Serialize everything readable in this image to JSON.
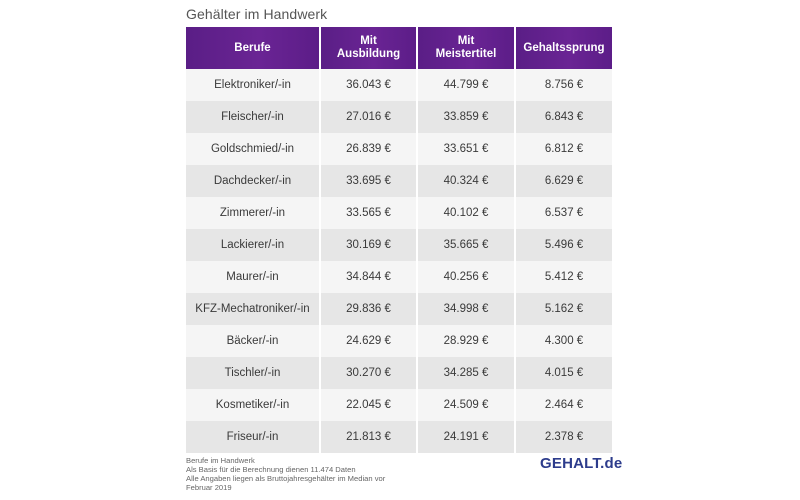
{
  "title": "Gehälter im Handwerk",
  "chart_data": {
    "type": "table",
    "title": "Gehälter im Handwerk",
    "columns": [
      "Berufe",
      "Mit\nAusbildung",
      "Mit\nMeistertitel",
      "Gehaltssprung"
    ],
    "rows": [
      [
        "Elektroniker/-in",
        "36.043 €",
        "44.799 €",
        "8.756 €"
      ],
      [
        "Fleischer/-in",
        "27.016 €",
        "33.859 €",
        "6.843 €"
      ],
      [
        "Goldschmied/-in",
        "26.839 €",
        "33.651 €",
        "6.812 €"
      ],
      [
        "Dachdecker/-in",
        "33.695 €",
        "40.324 €",
        "6.629 €"
      ],
      [
        "Zimmerer/-in",
        "33.565 €",
        "40.102 €",
        "6.537 €"
      ],
      [
        "Lackierer/-in",
        "30.169 €",
        "35.665 €",
        "5.496 €"
      ],
      [
        "Maurer/-in",
        "34.844 €",
        "40.256 €",
        "5.412 €"
      ],
      [
        "KFZ-Mechatroniker/-in",
        "29.836 €",
        "34.998 €",
        "5.162 €"
      ],
      [
        "Bäcker/-in",
        "24.629 €",
        "28.929 €",
        "4.300 €"
      ],
      [
        "Tischler/-in",
        "30.270 €",
        "34.285 €",
        "4.015 €"
      ],
      [
        "Kosmetiker/-in",
        "22.045 €",
        "24.509 €",
        "2.464 €"
      ],
      [
        "Friseur/-in",
        "21.813 €",
        "24.191 €",
        "2.378 €"
      ]
    ]
  },
  "footer": {
    "line1": "Berufe im Handwerk",
    "line2": "Als Basis für die Berechnung dienen 11.474 Daten",
    "line3": "Alle Angaben liegen als Bruttojahresgehälter im Median vor",
    "line4": "Februar 2019"
  },
  "brand": "GEHALT.de",
  "colors": {
    "header_bg": "#5f2089",
    "brand": "#2d3c8c"
  }
}
